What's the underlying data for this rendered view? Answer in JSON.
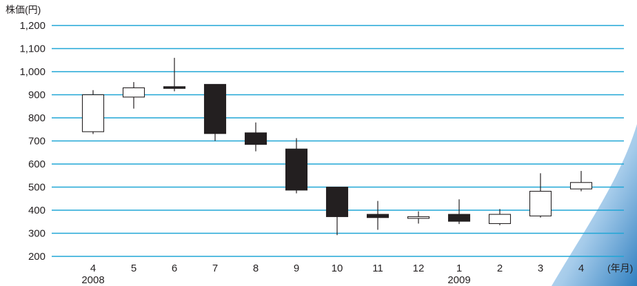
{
  "chart_data": {
    "type": "candlestick",
    "title": "",
    "ylabel": "株価(円)",
    "xlabel": "(年月)",
    "ylim": [
      200,
      1200
    ],
    "y_ticks": [
      200,
      300,
      400,
      500,
      600,
      700,
      800,
      900,
      1000,
      1100,
      1200
    ],
    "y_tick_labels": [
      "200",
      "300",
      "400",
      "500",
      "600",
      "700",
      "800",
      "900",
      "1,000",
      "1,100",
      "1,200"
    ],
    "grid": true,
    "year_labels": [
      {
        "year": "2008",
        "month_index": 0
      },
      {
        "year": "2009",
        "month_index": 9
      }
    ],
    "categories": [
      "4",
      "5",
      "6",
      "7",
      "8",
      "9",
      "10",
      "11",
      "12",
      "1",
      "2",
      "3",
      "4"
    ],
    "candles": [
      {
        "open": 740,
        "close": 900,
        "high": 920,
        "low": 730
      },
      {
        "open": 890,
        "close": 930,
        "high": 955,
        "low": 840
      },
      {
        "open": 935,
        "close": 928,
        "high": 1060,
        "low": 915
      },
      {
        "open": 945,
        "close": 732,
        "high": 945,
        "low": 700
      },
      {
        "open": 735,
        "close": 685,
        "high": 780,
        "low": 655
      },
      {
        "open": 665,
        "close": 487,
        "high": 712,
        "low": 473
      },
      {
        "open": 500,
        "close": 372,
        "high": 500,
        "low": 292
      },
      {
        "open": 382,
        "close": 368,
        "high": 440,
        "low": 315
      },
      {
        "open": 368,
        "close": 372,
        "high": 395,
        "low": 342
      },
      {
        "open": 382,
        "close": 352,
        "high": 447,
        "low": 340
      },
      {
        "open": 342,
        "close": 382,
        "high": 405,
        "low": 335
      },
      {
        "open": 375,
        "close": 482,
        "high": 560,
        "low": 368
      },
      {
        "open": 492,
        "close": 520,
        "high": 570,
        "low": 482
      }
    ],
    "colors": {
      "grid": "#1ea6d6",
      "candle_up_fill": "#ffffff",
      "candle_down_fill": "#231f20",
      "candle_stroke": "#231f20",
      "text": "#231f20",
      "decor_light": "#e6f0fa",
      "decor_dark": "#3f8cc9"
    }
  }
}
